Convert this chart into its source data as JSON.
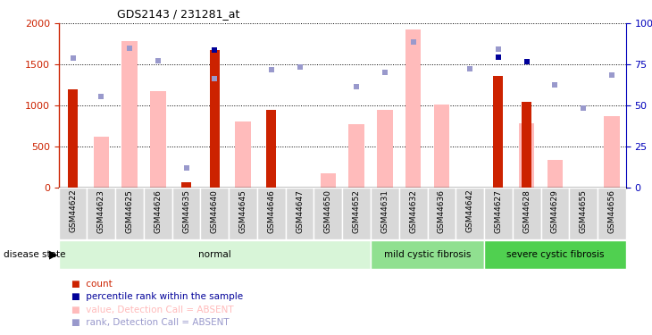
{
  "title": "GDS2143 / 231281_at",
  "samples": [
    "GSM44622",
    "GSM44623",
    "GSM44625",
    "GSM44626",
    "GSM44635",
    "GSM44640",
    "GSM44645",
    "GSM44646",
    "GSM44647",
    "GSM44650",
    "GSM44652",
    "GSM44631",
    "GSM44632",
    "GSM44636",
    "GSM44642",
    "GSM44627",
    "GSM44628",
    "GSM44629",
    "GSM44655",
    "GSM44656"
  ],
  "count_values": [
    1200,
    null,
    null,
    null,
    70,
    1680,
    null,
    950,
    null,
    null,
    null,
    null,
    null,
    null,
    null,
    1360,
    1040,
    null,
    null,
    null
  ],
  "value_absent": [
    null,
    620,
    1780,
    1180,
    null,
    null,
    810,
    null,
    null,
    175,
    770,
    950,
    1930,
    1010,
    null,
    null,
    785,
    340,
    null,
    870
  ],
  "rank_absent": [
    1575,
    1115,
    1700,
    1550,
    240,
    1330,
    null,
    1440,
    1470,
    null,
    1230,
    1400,
    1775,
    null,
    1450,
    1685,
    null,
    1250,
    970,
    1375
  ],
  "percentile_rank": [
    null,
    null,
    null,
    null,
    null,
    1680,
    null,
    null,
    null,
    null,
    null,
    null,
    null,
    null,
    null,
    1590,
    1530,
    null,
    null,
    null
  ],
  "groups": [
    {
      "label": "normal",
      "start": 0,
      "end": 11,
      "color": "#d8f5d8"
    },
    {
      "label": "mild cystic fibrosis",
      "start": 11,
      "end": 15,
      "color": "#90e090"
    },
    {
      "label": "severe cystic fibrosis",
      "start": 15,
      "end": 20,
      "color": "#50d050"
    }
  ],
  "ylim_left": [
    0,
    2000
  ],
  "ylim_right": [
    0,
    100
  ],
  "right_ticks": [
    0,
    25,
    50,
    75,
    100
  ],
  "right_tick_labels": [
    "0",
    "25",
    "50",
    "75",
    "100%"
  ],
  "left_ticks": [
    0,
    500,
    1000,
    1500,
    2000
  ],
  "count_color": "#cc2200",
  "value_abs_color": "#ffbbbb",
  "rank_abs_color": "#9999cc",
  "percentile_color": "#000099",
  "legend_items": [
    {
      "label": "count",
      "color": "#cc2200"
    },
    {
      "label": "percentile rank within the sample",
      "color": "#000099"
    },
    {
      "label": "value, Detection Call = ABSENT",
      "color": "#ffbbbb"
    },
    {
      "label": "rank, Detection Call = ABSENT",
      "color": "#9999cc"
    }
  ]
}
